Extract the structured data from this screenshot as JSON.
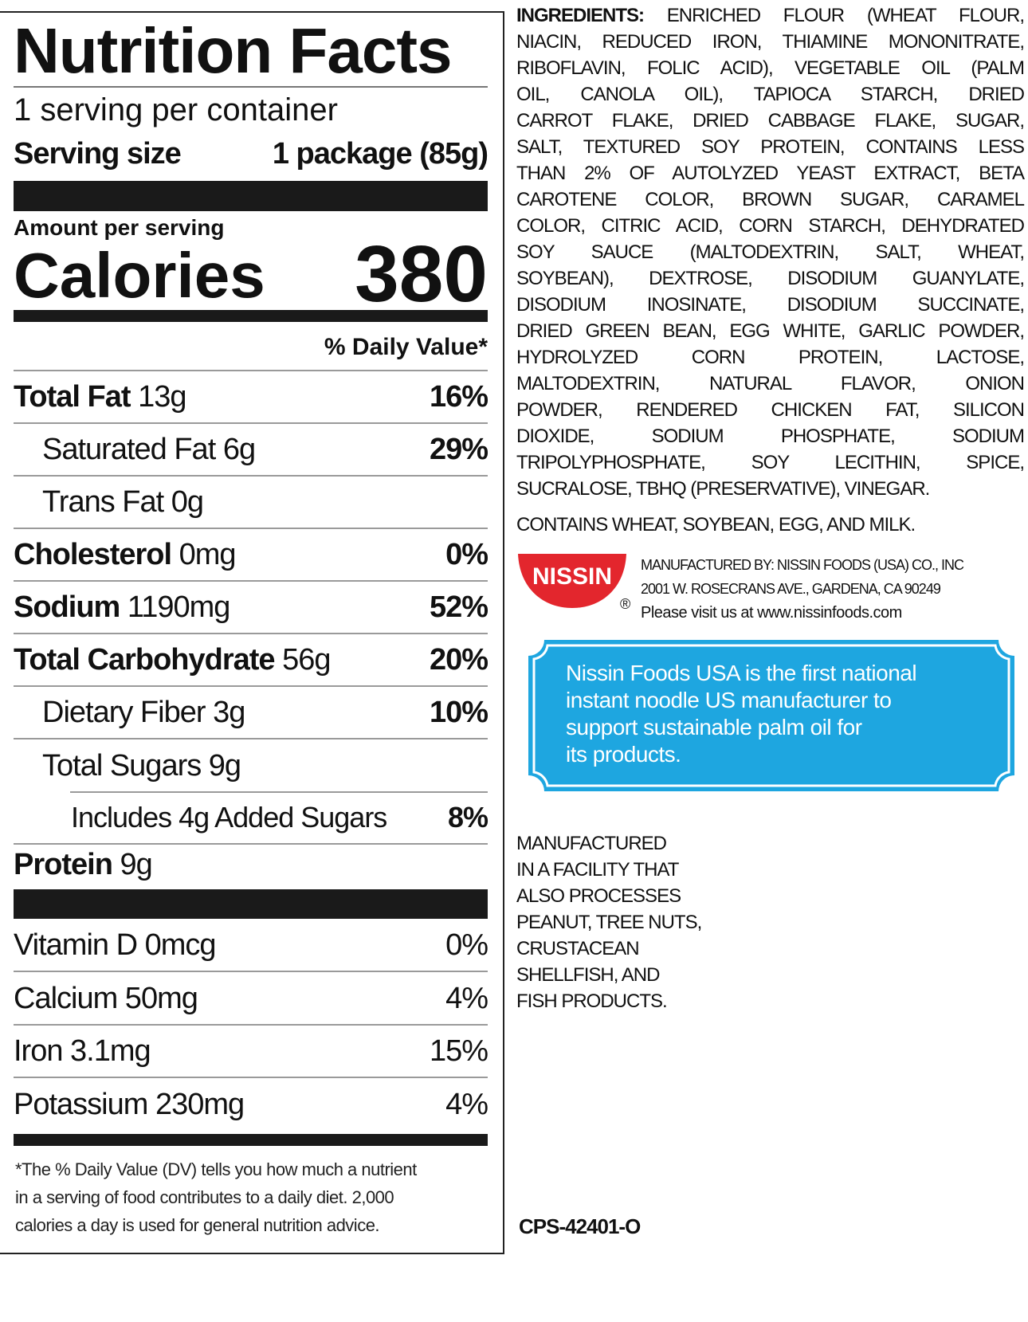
{
  "nutrition": {
    "title": "Nutrition Facts",
    "servings": "1 serving per container",
    "serving_size_label": "Serving size",
    "serving_size_value": "1 package (85g)",
    "amount_per_serving": "Amount per serving",
    "calories_label": "Calories",
    "calories_value": "380",
    "dv_header": "% Daily Value*",
    "rows": [
      {
        "name": "Total Fat",
        "amount": "13g",
        "dv": "16%"
      },
      {
        "name": "Saturated Fat",
        "amount": "6g",
        "dv": "29%"
      },
      {
        "name": "Trans Fat",
        "amount": "0g",
        "dv": ""
      },
      {
        "name": "Cholesterol",
        "amount": "0mg",
        "dv": "0%"
      },
      {
        "name": "Sodium",
        "amount": "1190mg",
        "dv": "52%"
      },
      {
        "name": "Total Carbohydrate",
        "amount": "56g",
        "dv": "20%"
      },
      {
        "name": "Dietary Fiber",
        "amount": "3g",
        "dv": "10%"
      },
      {
        "name": "Total Sugars",
        "amount": "9g",
        "dv": ""
      },
      {
        "name": "Includes 4g Added Sugars",
        "amount": "",
        "dv": "8%"
      },
      {
        "name": "Protein",
        "amount": "9g",
        "dv": ""
      }
    ],
    "vitamins": [
      {
        "name": "Vitamin D 0mcg",
        "dv": "0%"
      },
      {
        "name": "Calcium 50mg",
        "dv": "4%"
      },
      {
        "name": "Iron 3.1mg",
        "dv": "15%"
      },
      {
        "name": "Potassium 230mg",
        "dv": "4%"
      }
    ],
    "footnote": [
      "*The % Daily Value (DV) tells you how much a nutrient",
      "in a serving of food contributes to a daily diet. 2,000",
      "calories a day is used for general nutrition advice."
    ]
  },
  "ingredients": {
    "label": "INGREDIENTS:",
    "lines": [
      " ENRICHED FLOUR (WHEAT FLOUR,",
      "NIACIN, REDUCED IRON, THIAMINE MONONITRATE,",
      "RIBOFLAVIN, FOLIC ACID), VEGETABLE OIL (PALM",
      "OIL, CANOLA OIL), TAPIOCA STARCH, DRIED",
      "CARROT FLAKE, DRIED CABBAGE FLAKE, SUGAR,",
      "SALT, TEXTURED SOY PROTEIN, CONTAINS LESS",
      "THAN 2% OF AUTOLYZED YEAST EXTRACT, BETA",
      "CAROTENE COLOR, BROWN SUGAR, CARAMEL",
      "COLOR, CITRIC ACID, CORN STARCH, DEHYDRATED",
      "SOY SAUCE (MALTODEXTRIN, SALT, WHEAT,",
      "SOYBEAN), DEXTROSE, DISODIUM GUANYLATE,",
      "DISODIUM INOSINATE, DISODIUM SUCCINATE,",
      "DRIED GREEN BEAN, EGG WHITE, GARLIC POWDER,",
      "HYDROLYZED CORN PROTEIN, LACTOSE,",
      "MALTODEXTRIN, NATURAL FLAVOR, ONION",
      "POWDER, RENDERED CHICKEN FAT, SILICON",
      "DIOXIDE, SODIUM PHOSPHATE, SODIUM",
      "TRIPOLYPHOSPHATE, SOY LECITHIN, SPICE,",
      "SUCRALOSE, TBHQ (PRESERVATIVE), VINEGAR."
    ],
    "contains": "CONTAINS WHEAT, SOYBEAN, EGG, AND MILK."
  },
  "manufacturer": {
    "logo_text": "NISSIN",
    "registered": "®",
    "logo_color": "#e3262d",
    "lines": [
      "MANUFACTURED BY: NISSIN FOODS (USA) CO., INC",
      "2001 W. ROSECRANS AVE., GARDENA, CA 90249",
      "Please visit us at www.nissinfoods.com"
    ]
  },
  "sustainability": {
    "color": "#1ea6e0",
    "lines": [
      "Nissin Foods USA is the first national",
      "instant noodle US manufacturer to",
      "support sustainable palm oil for",
      "its products."
    ]
  },
  "facility": [
    "MANUFACTURED",
    "IN A FACILITY THAT",
    "ALSO PROCESSES",
    "PEANUT, TREE NUTS,",
    "CRUSTACEAN",
    "SHELLFISH, AND",
    "FISH PRODUCTS."
  ],
  "code": "CPS-42401-O"
}
